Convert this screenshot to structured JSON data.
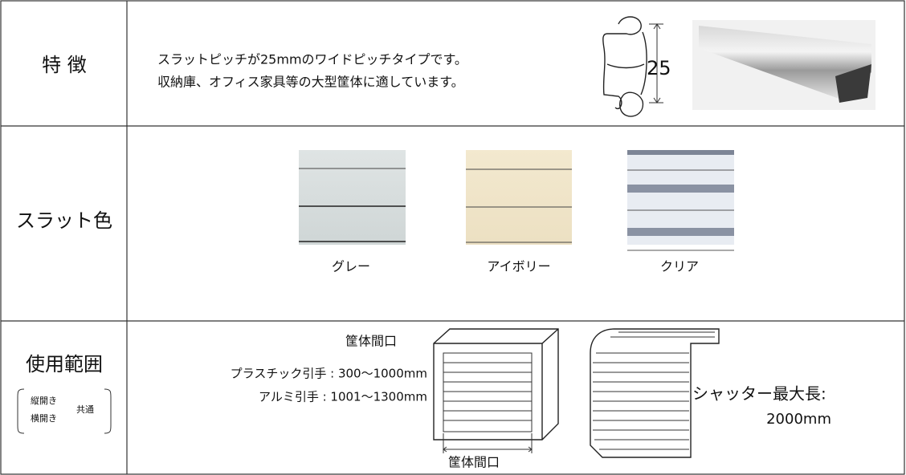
{
  "table": {
    "rows": [
      {
        "label": "特 徴",
        "lines": [
          "スラットピッチが25mmのワイドピッチタイプです。",
          "収納庫、オフィス家具等の大型筐体に適しています。"
        ],
        "dimension": "25"
      },
      {
        "label": "スラット色",
        "swatches": [
          "グレー",
          "アイボリー",
          "クリア"
        ]
      },
      {
        "label": "使用範囲",
        "note": {
          "items": [
            "縦開き",
            "横開き"
          ],
          "common": "共通"
        },
        "heading": "筐体間口",
        "ranges": [
          "プラスチック引手 : 300〜1000mm",
          "アルミ引手 : 1001〜1300mm"
        ],
        "diagram_label": "筐体間口",
        "max_length_label": "シャッター最大長:",
        "max_length": "2000mm"
      }
    ]
  }
}
